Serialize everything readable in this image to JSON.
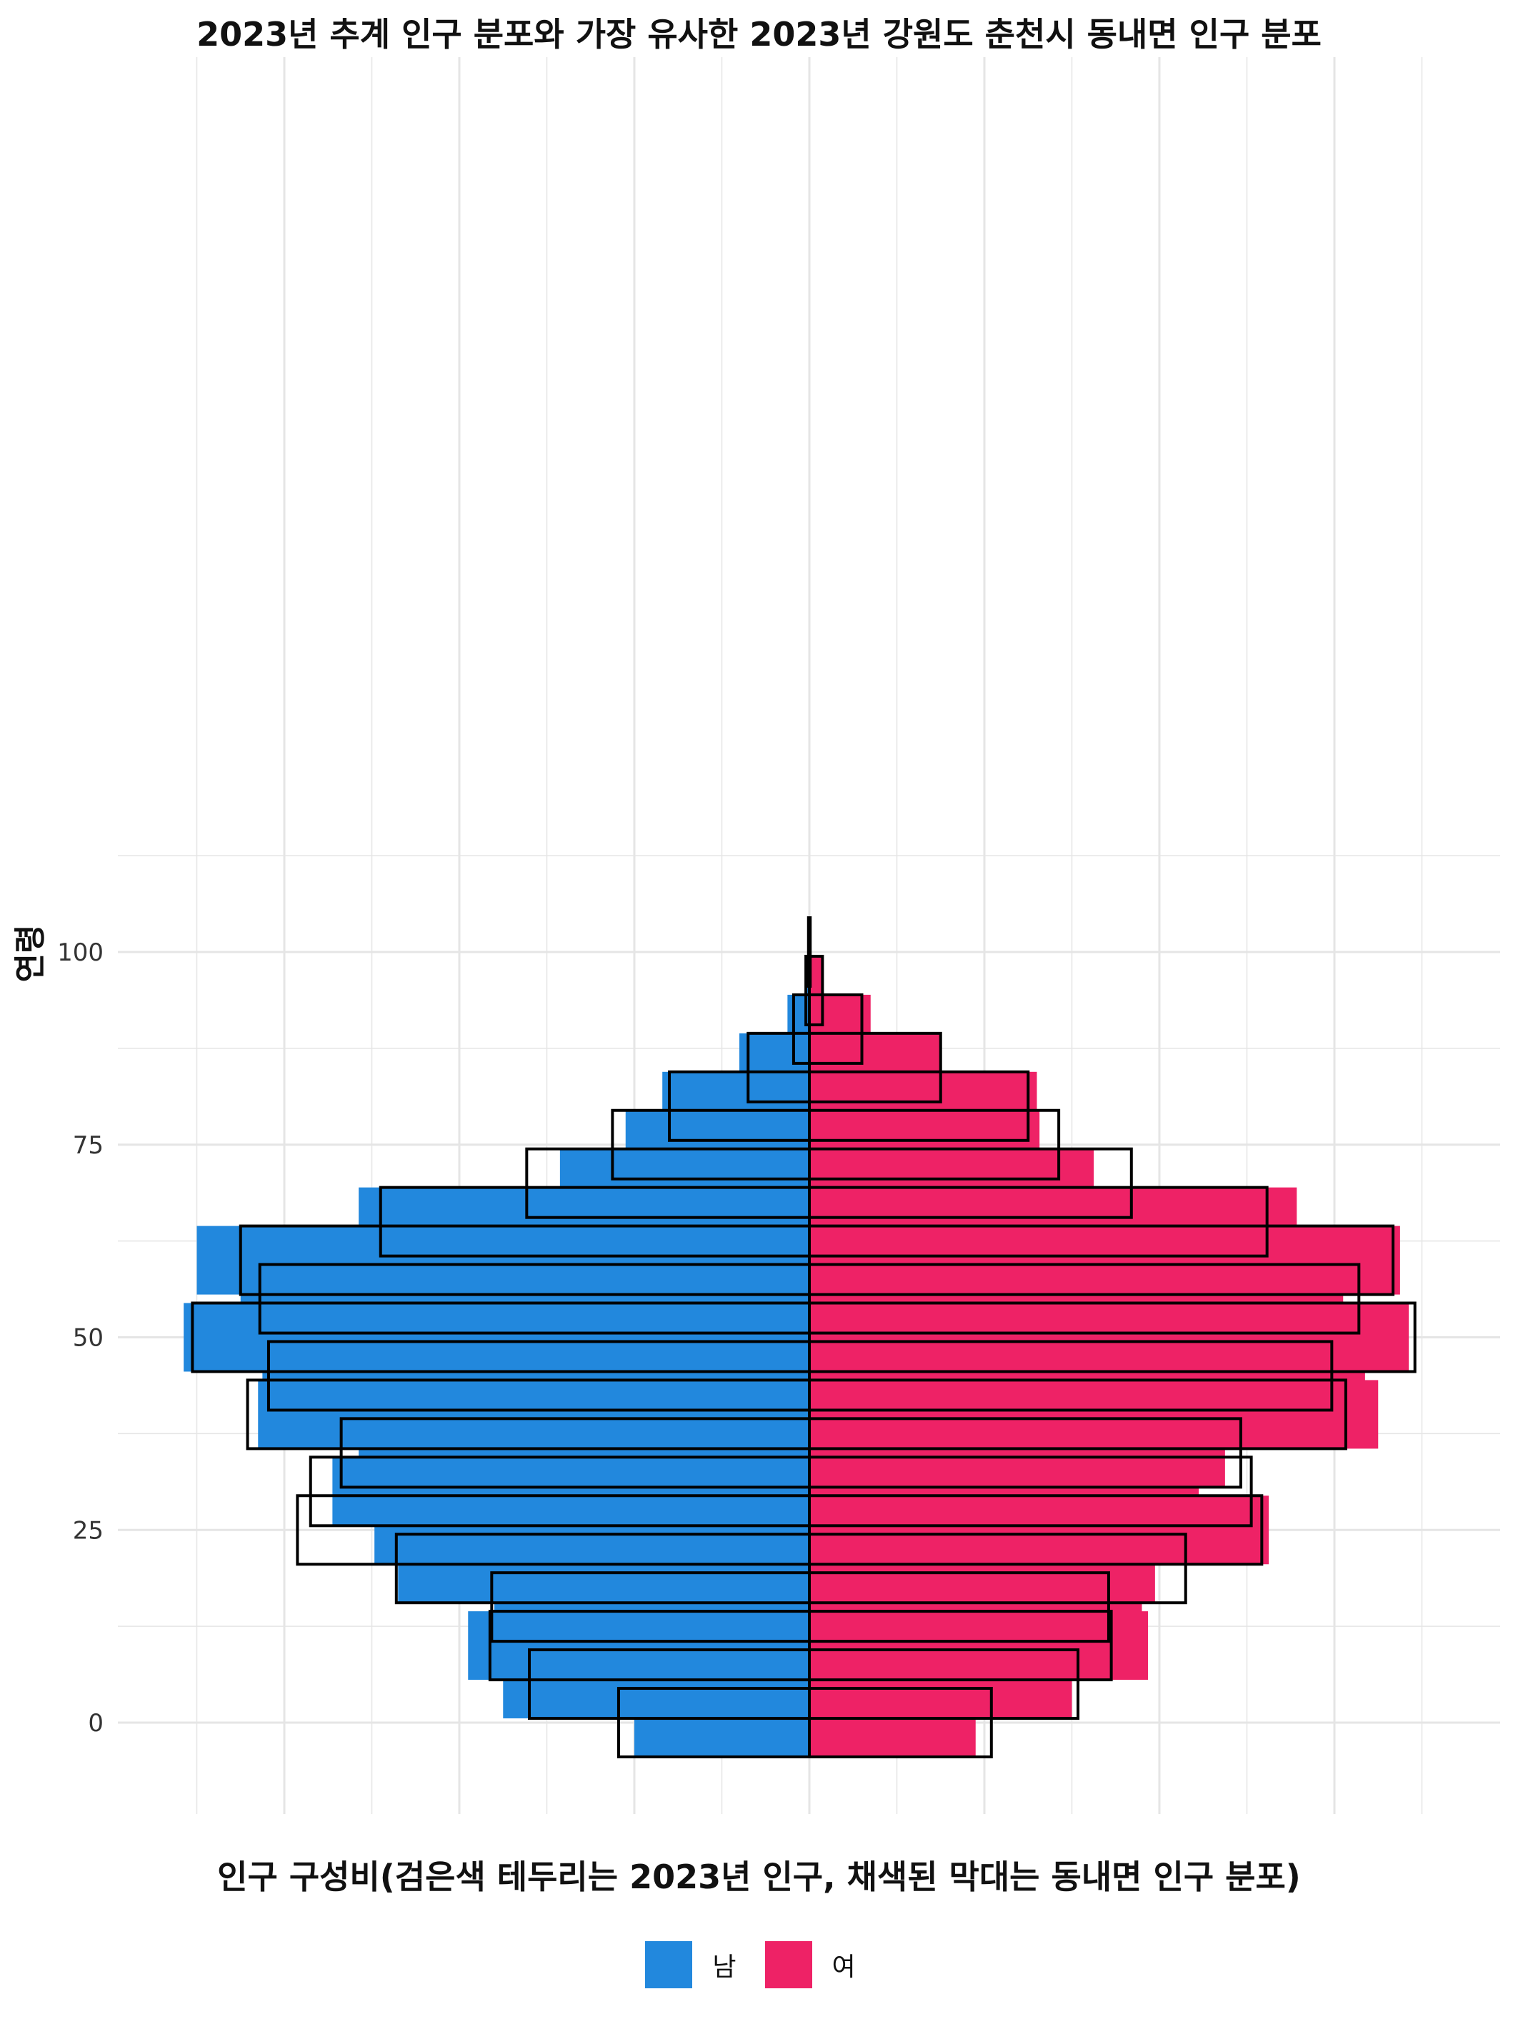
{
  "chart_data": {
    "type": "population-pyramid",
    "title": "2023년 추계 인구 분포와 가장 유사한 2023년 강원도 춘천시 동내면 인구 분포",
    "xlabel": "인구 구성비(검은색 테두리는 2023년 인구, 채색된 막대는 동내면 인구 분포)",
    "ylabel": "연령",
    "y_ticks": [
      0,
      25,
      50,
      75,
      100
    ],
    "ylim": [
      -7,
      107
    ],
    "x_range": [
      -7,
      7
    ],
    "legend": [
      {
        "label": "남",
        "color": "#2288DD"
      },
      {
        "label": "여",
        "color": "#EE2266"
      }
    ],
    "colors": {
      "male": "#2288DD",
      "female": "#EE2266",
      "outline": "#000000",
      "grid": "#E5E5E5"
    },
    "age_groups": [
      0,
      5,
      10,
      15,
      20,
      25,
      30,
      35,
      40,
      45,
      50,
      55,
      60,
      65,
      70,
      75,
      80,
      85,
      90,
      95,
      100
    ],
    "series": [
      {
        "name": "동내면 남",
        "values": [
          2.0,
          3.5,
          3.9,
          3.6,
          4.7,
          4.97,
          5.45,
          5.15,
          6.3,
          6.25,
          7.15,
          6.5,
          7.0,
          5.15,
          2.85,
          2.1,
          1.68,
          0.8,
          0.25,
          0.05,
          0.0
        ]
      },
      {
        "name": "동내면 여",
        "values": [
          1.9,
          3.0,
          3.87,
          3.8,
          3.95,
          5.25,
          4.45,
          4.75,
          6.5,
          6.35,
          6.85,
          6.1,
          6.75,
          5.57,
          3.25,
          2.63,
          2.6,
          1.5,
          0.7,
          0.15,
          0.0
        ]
      },
      {
        "name": "2023년 남",
        "values": [
          2.18,
          3.2,
          3.65,
          3.63,
          4.72,
          5.85,
          5.7,
          5.35,
          6.42,
          6.18,
          7.05,
          6.28,
          6.5,
          4.9,
          3.23,
          2.25,
          1.6,
          0.7,
          0.18,
          0.04,
          0.01
        ]
      },
      {
        "name": "2023년 여",
        "values": [
          2.08,
          3.07,
          3.45,
          3.42,
          4.3,
          5.17,
          5.05,
          4.93,
          6.13,
          5.97,
          6.92,
          6.28,
          6.67,
          5.23,
          3.68,
          2.85,
          2.5,
          1.5,
          0.6,
          0.15,
          0.01
        ]
      }
    ]
  }
}
